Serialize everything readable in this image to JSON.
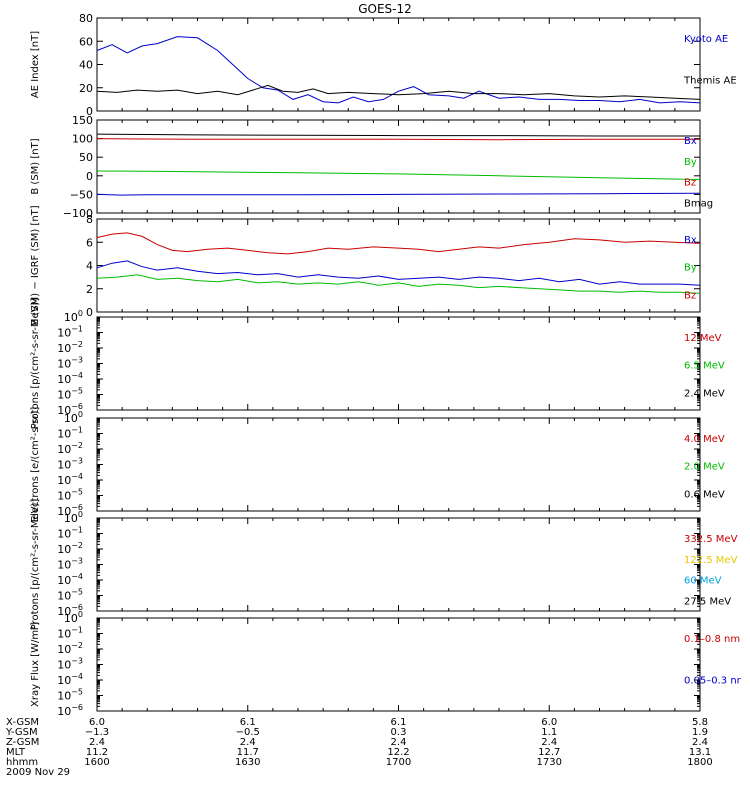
{
  "title": "GOES-12",
  "chart_data": [
    {
      "type": "line",
      "ylabel": "AE Index [nT]",
      "ylim": [
        0,
        80
      ],
      "yticks": [
        {
          "v": 0,
          "label": "0"
        },
        {
          "v": 20,
          "label": "20"
        },
        {
          "v": 40,
          "label": "40"
        },
        {
          "v": 60,
          "label": "60"
        },
        {
          "v": 80,
          "label": "80"
        }
      ],
      "legend": [
        {
          "label": "Kyoto AE",
          "color": "#0000cc"
        },
        {
          "label": "Themis AE",
          "color": "#000000"
        }
      ],
      "series": [
        {
          "name": "Kyoto AE",
          "color": "#0000cc",
          "x": [
            0,
            3,
            6,
            9,
            12,
            16,
            20,
            24,
            27,
            30,
            33,
            36,
            39,
            42,
            45,
            48,
            51,
            54,
            57,
            60,
            63,
            66,
            70,
            73,
            76,
            80,
            84,
            88,
            92,
            96,
            100,
            104,
            108,
            112,
            116,
            120
          ],
          "y": [
            52,
            57,
            50,
            56,
            58,
            64,
            63,
            52,
            40,
            28,
            20,
            18,
            10,
            14,
            8,
            7,
            12,
            8,
            10,
            17,
            21,
            14,
            13,
            11,
            17,
            11,
            12,
            10,
            10,
            9,
            9,
            8,
            10,
            7,
            8,
            7
          ]
        },
        {
          "name": "Themis AE",
          "color": "#000000",
          "x": [
            0,
            4,
            8,
            12,
            16,
            20,
            24,
            28,
            31,
            34,
            37,
            40,
            43,
            46,
            50,
            55,
            60,
            65,
            70,
            75,
            80,
            85,
            90,
            95,
            100,
            105,
            110,
            115,
            120
          ],
          "y": [
            17,
            16,
            18,
            17,
            18,
            15,
            17,
            14,
            18,
            22,
            17,
            16,
            19,
            15,
            16,
            15,
            14,
            15,
            17,
            15,
            15,
            14,
            15,
            13,
            12,
            13,
            12,
            11,
            10
          ]
        }
      ]
    },
    {
      "type": "line",
      "ylabel": "B (SM) [nT]",
      "ylim": [
        -100,
        150
      ],
      "yticks": [
        {
          "v": -100,
          "label": "−100"
        },
        {
          "v": -50,
          "label": "−50"
        },
        {
          "v": 0,
          "label": "0"
        },
        {
          "v": 50,
          "label": "50"
        },
        {
          "v": 100,
          "label": "100"
        },
        {
          "v": 150,
          "label": "150"
        }
      ],
      "legend": [
        {
          "label": "Bx",
          "color": "#0000cc"
        },
        {
          "label": "By",
          "color": "#00bb00"
        },
        {
          "label": "Bz",
          "color": "#cc0000"
        },
        {
          "label": "Bmag",
          "color": "#000000"
        }
      ],
      "series": [
        {
          "name": "Bmag",
          "color": "#000000",
          "x": [
            0,
            10,
            20,
            40,
            60,
            80,
            100,
            120
          ],
          "y": [
            112,
            111,
            110,
            109,
            108,
            108,
            107,
            107
          ]
        },
        {
          "name": "Bz",
          "color": "#cc0000",
          "x": [
            0,
            10,
            20,
            40,
            60,
            80,
            100,
            120
          ],
          "y": [
            100,
            99,
            98,
            98,
            98,
            97,
            98,
            98
          ]
        },
        {
          "name": "By",
          "color": "#00bb00",
          "x": [
            0,
            10,
            20,
            40,
            60,
            80,
            100,
            120
          ],
          "y": [
            13,
            12,
            11,
            8,
            5,
            0,
            -5,
            -10
          ]
        },
        {
          "name": "Bx",
          "color": "#0000cc",
          "x": [
            0,
            5,
            10,
            20,
            40,
            60,
            80,
            100,
            120
          ],
          "y": [
            -50,
            -52,
            -51,
            -51,
            -51,
            -50,
            -49,
            -48,
            -47
          ]
        }
      ]
    },
    {
      "type": "line",
      "ylabel": "B (SM) − IGRF (SM) [nT]",
      "ylim": [
        0,
        8
      ],
      "yticks": [
        {
          "v": 0,
          "label": "0"
        },
        {
          "v": 2,
          "label": "2"
        },
        {
          "v": 4,
          "label": "4"
        },
        {
          "v": 6,
          "label": "6"
        },
        {
          "v": 8,
          "label": "8"
        }
      ],
      "legend": [
        {
          "label": "Bx",
          "color": "#0000cc"
        },
        {
          "label": "By",
          "color": "#00bb00"
        },
        {
          "label": "Bz",
          "color": "#cc0000"
        }
      ],
      "series": [
        {
          "name": "Bz",
          "color": "#cc0000",
          "x": [
            0,
            3,
            6,
            9,
            12,
            15,
            18,
            22,
            26,
            30,
            34,
            38,
            42,
            46,
            50,
            55,
            60,
            64,
            68,
            72,
            76,
            80,
            85,
            90,
            95,
            100,
            105,
            110,
            115,
            120
          ],
          "y": [
            6.4,
            6.7,
            6.8,
            6.5,
            5.8,
            5.3,
            5.2,
            5.4,
            5.5,
            5.3,
            5.1,
            5.0,
            5.2,
            5.5,
            5.4,
            5.6,
            5.5,
            5.4,
            5.2,
            5.4,
            5.6,
            5.5,
            5.8,
            6.0,
            6.3,
            6.2,
            6.0,
            6.1,
            6.0,
            5.9
          ]
        },
        {
          "name": "Bx",
          "color": "#0000cc",
          "x": [
            0,
            3,
            6,
            9,
            12,
            16,
            20,
            24,
            28,
            32,
            36,
            40,
            44,
            48,
            52,
            56,
            60,
            64,
            68,
            72,
            76,
            80,
            84,
            88,
            92,
            96,
            100,
            104,
            108,
            112,
            116,
            120
          ],
          "y": [
            3.8,
            4.2,
            4.4,
            3.9,
            3.6,
            3.8,
            3.5,
            3.3,
            3.4,
            3.2,
            3.3,
            3.0,
            3.2,
            3.0,
            2.9,
            3.1,
            2.8,
            2.9,
            3.0,
            2.8,
            3.0,
            2.9,
            2.7,
            2.9,
            2.6,
            2.8,
            2.4,
            2.6,
            2.4,
            2.4,
            2.4,
            2.3
          ]
        },
        {
          "name": "By",
          "color": "#00bb00",
          "x": [
            0,
            4,
            8,
            12,
            16,
            20,
            24,
            28,
            32,
            36,
            40,
            44,
            48,
            52,
            56,
            60,
            64,
            68,
            72,
            76,
            80,
            84,
            88,
            92,
            96,
            100,
            104,
            108,
            112,
            116,
            120
          ],
          "y": [
            2.9,
            3.0,
            3.2,
            2.8,
            2.9,
            2.7,
            2.6,
            2.8,
            2.5,
            2.6,
            2.4,
            2.5,
            2.4,
            2.6,
            2.3,
            2.5,
            2.2,
            2.4,
            2.3,
            2.1,
            2.2,
            2.1,
            2.0,
            1.9,
            1.8,
            1.8,
            1.7,
            1.8,
            1.7,
            1.7,
            1.6
          ]
        }
      ]
    },
    {
      "type": "line",
      "ylabel": "Protons [p/(cm²-s-sr-MeV)]",
      "scale": "log",
      "ylim": [
        1e-06,
        1
      ],
      "yticks": [
        {
          "v": 0,
          "label": "10",
          "exp": "0"
        },
        {
          "v": -1,
          "label": "10",
          "exp": "−1"
        },
        {
          "v": -2,
          "label": "10",
          "exp": "−2"
        },
        {
          "v": -3,
          "label": "10",
          "exp": "−3"
        },
        {
          "v": -4,
          "label": "10",
          "exp": "−4"
        },
        {
          "v": -5,
          "label": "10",
          "exp": "−5"
        },
        {
          "v": -6,
          "label": "10",
          "exp": "−6"
        }
      ],
      "legend": [
        {
          "label": "12 MeV",
          "color": "#cc0000"
        },
        {
          "label": "6.5 MeV",
          "color": "#00bb00"
        },
        {
          "label": "2.4 MeV",
          "color": "#000000"
        }
      ],
      "series": []
    },
    {
      "type": "line",
      "ylabel": "Electrons [e/(cm²-s-sr)]",
      "scale": "log",
      "ylim": [
        1e-06,
        1
      ],
      "yticks": [
        {
          "v": 0,
          "label": "10",
          "exp": "0"
        },
        {
          "v": -1,
          "label": "10",
          "exp": "−1"
        },
        {
          "v": -2,
          "label": "10",
          "exp": "−2"
        },
        {
          "v": -3,
          "label": "10",
          "exp": "−3"
        },
        {
          "v": -4,
          "label": "10",
          "exp": "−4"
        },
        {
          "v": -5,
          "label": "10",
          "exp": "−5"
        },
        {
          "v": -6,
          "label": "10",
          "exp": "−6"
        }
      ],
      "legend": [
        {
          "label": "4.0 MeV",
          "color": "#cc0000"
        },
        {
          "label": "2.0 MeV",
          "color": "#00bb00"
        },
        {
          "label": "0.6 MeV",
          "color": "#000000"
        }
      ],
      "series": []
    },
    {
      "type": "line",
      "ylabel": "Protons [p/(cm²-s-sr-MeV)]",
      "scale": "log",
      "ylim": [
        1e-06,
        1
      ],
      "yticks": [
        {
          "v": 0,
          "label": "10",
          "exp": "0"
        },
        {
          "v": -1,
          "label": "10",
          "exp": "−1"
        },
        {
          "v": -2,
          "label": "10",
          "exp": "−2"
        },
        {
          "v": -3,
          "label": "10",
          "exp": "−3"
        },
        {
          "v": -4,
          "label": "10",
          "exp": "−4"
        },
        {
          "v": -5,
          "label": "10",
          "exp": "−5"
        },
        {
          "v": -6,
          "label": "10",
          "exp": "−6"
        }
      ],
      "legend": [
        {
          "label": "332.5 MeV",
          "color": "#cc0000"
        },
        {
          "label": "122.5 MeV",
          "color": "#e6c800"
        },
        {
          "label": "60 MeV",
          "color": "#00a0e0"
        },
        {
          "label": "27.5 MeV",
          "color": "#000000"
        }
      ],
      "series": []
    },
    {
      "type": "line",
      "ylabel": "Xray Flux [W/m²]",
      "scale": "log",
      "ylim": [
        1e-06,
        1
      ],
      "yticks": [
        {
          "v": 0,
          "label": "10",
          "exp": "0"
        },
        {
          "v": -1,
          "label": "10",
          "exp": "−1"
        },
        {
          "v": -2,
          "label": "10",
          "exp": "−2"
        },
        {
          "v": -3,
          "label": "10",
          "exp": "−3"
        },
        {
          "v": -4,
          "label": "10",
          "exp": "−4"
        },
        {
          "v": -5,
          "label": "10",
          "exp": "−5"
        },
        {
          "v": -6,
          "label": "10",
          "exp": "−6"
        }
      ],
      "legend": [
        {
          "label": "0.1–0.8 nm",
          "color": "#cc0000"
        },
        {
          "label": "0.05–0.3 nr",
          "color": "#0000cc"
        }
      ],
      "series": []
    }
  ],
  "footer": {
    "row_labels": [
      "X-GSM",
      "Y-GSM",
      "Z-GSM",
      "MLT",
      "hhmm"
    ],
    "date": "2009 Nov 29",
    "columns": [
      {
        "x": 0,
        "values": [
          "6.0",
          "−1.3",
          "2.4",
          "11.2",
          "1600"
        ]
      },
      {
        "x": 30,
        "values": [
          "6.1",
          "−0.5",
          "2.4",
          "11.7",
          "1630"
        ]
      },
      {
        "x": 60,
        "values": [
          "6.1",
          "0.3",
          "2.4",
          "12.2",
          "1700"
        ]
      },
      {
        "x": 90,
        "values": [
          "6.0",
          "1.1",
          "2.4",
          "12.7",
          "1730"
        ]
      },
      {
        "x": 120,
        "values": [
          "5.8",
          "1.9",
          "2.4",
          "13.1",
          "1800"
        ]
      }
    ]
  }
}
